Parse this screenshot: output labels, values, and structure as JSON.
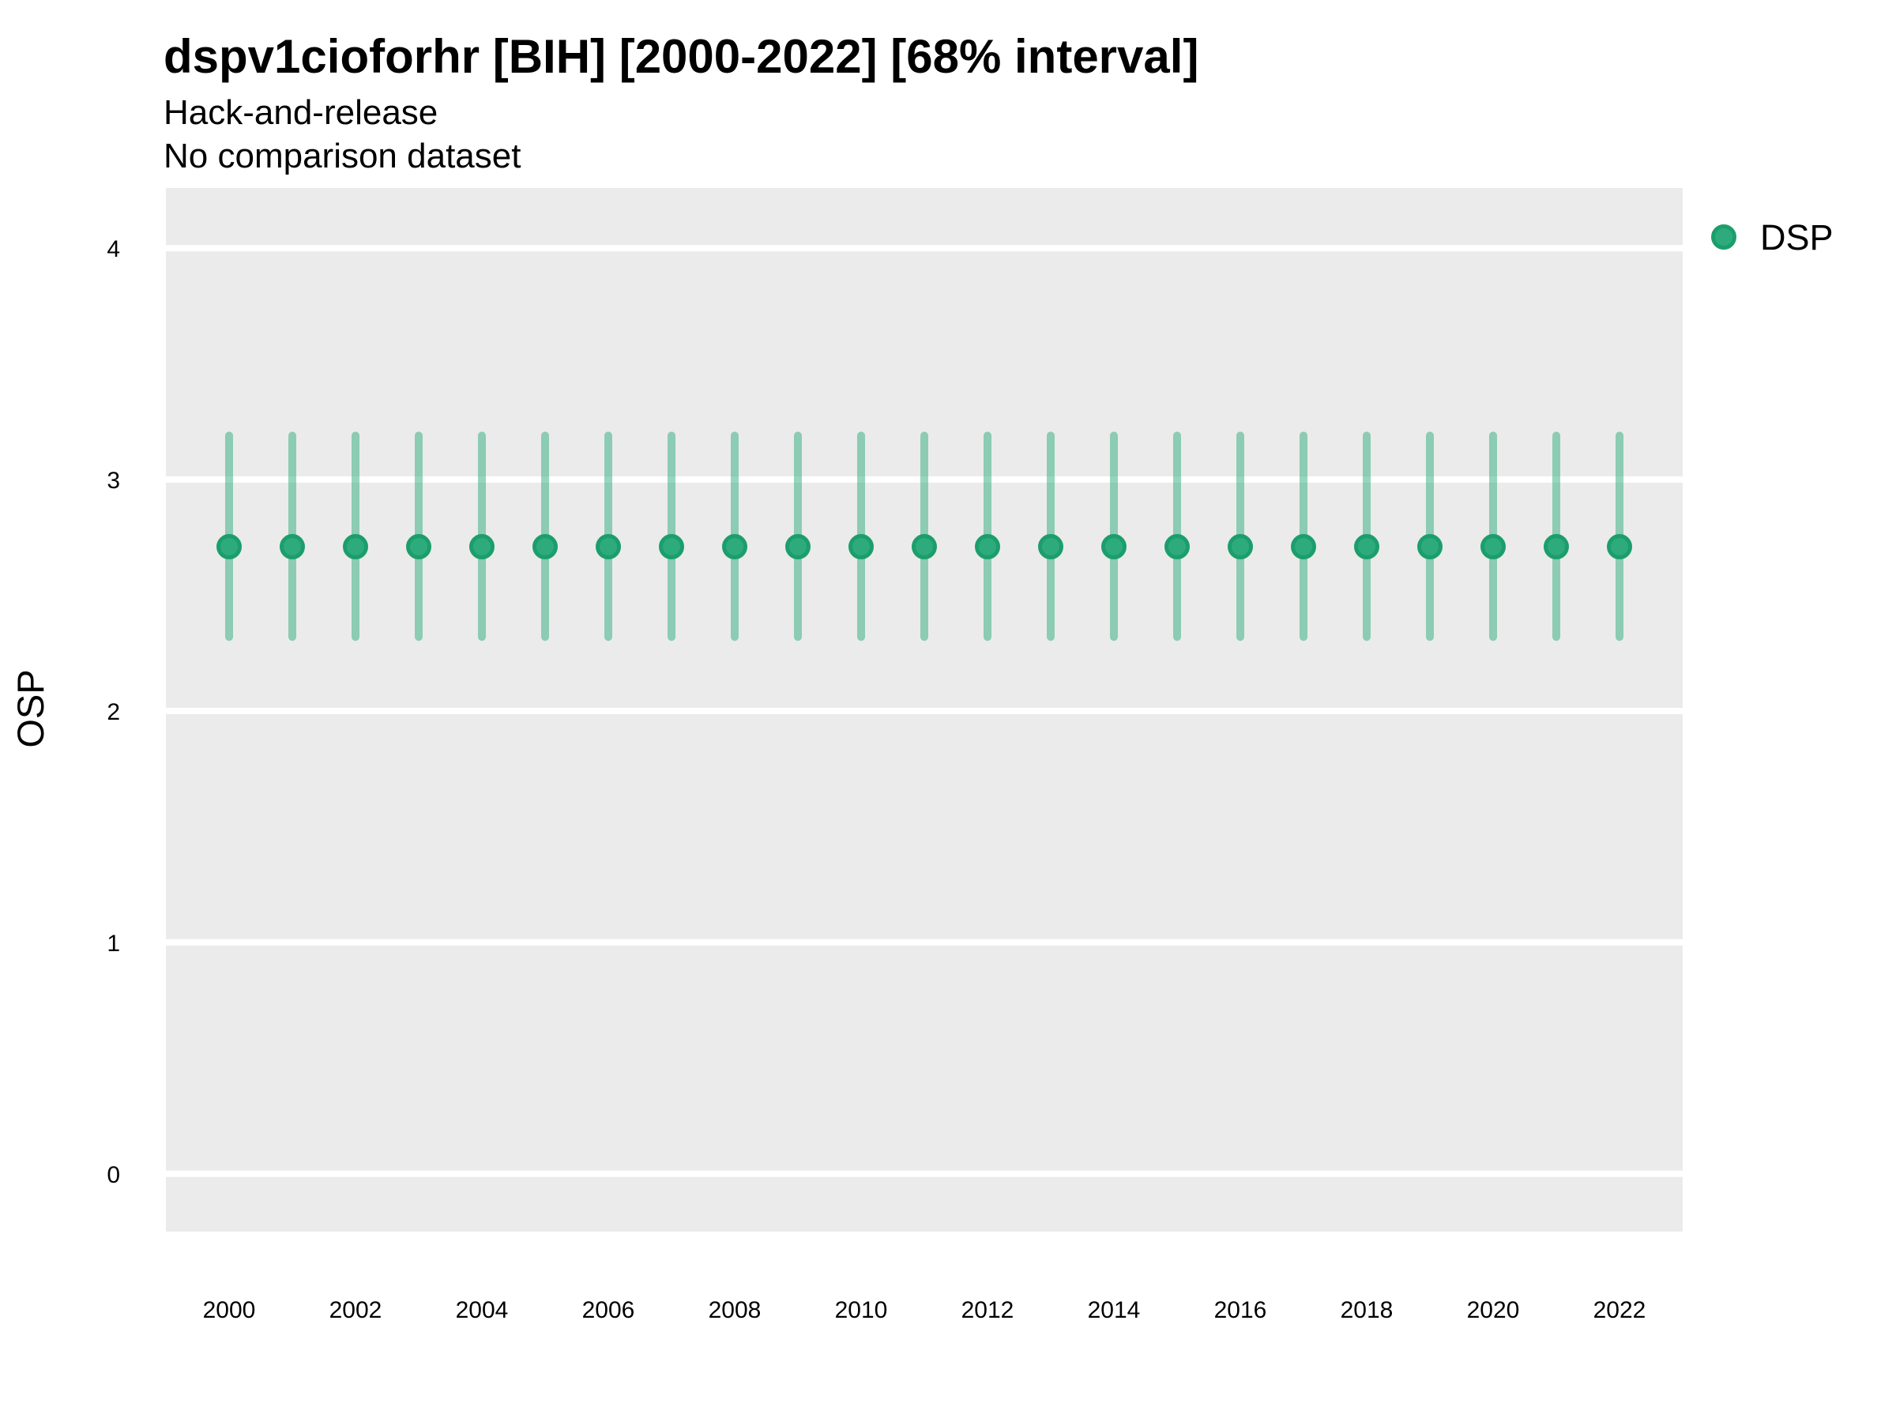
{
  "header": {
    "title": "dspv1cioforhr [BIH] [2000-2022] [68% interval]",
    "subtitle_line1": "Hack-and-release",
    "subtitle_line2": "No comparison dataset"
  },
  "legend": {
    "items": [
      {
        "label": "DSP",
        "marker_color": "#2EAB7D",
        "marker_border": "#1C9E6C"
      }
    ]
  },
  "chart_data": {
    "type": "scatter",
    "title": "dspv1cioforhr [BIH] [2000-2022] [68% interval]",
    "subtitle": [
      "Hack-and-release",
      "No comparison dataset"
    ],
    "xlabel": "",
    "ylabel": "OSP",
    "interval_label": "68% interval",
    "series": [
      {
        "name": "DSP",
        "x": [
          2000,
          2001,
          2002,
          2003,
          2004,
          2005,
          2006,
          2007,
          2008,
          2009,
          2010,
          2011,
          2012,
          2013,
          2014,
          2015,
          2016,
          2017,
          2018,
          2019,
          2020,
          2021,
          2022
        ],
        "estimate": [
          2.71,
          2.71,
          2.71,
          2.71,
          2.71,
          2.71,
          2.71,
          2.71,
          2.71,
          2.71,
          2.71,
          2.71,
          2.71,
          2.71,
          2.71,
          2.71,
          2.71,
          2.71,
          2.71,
          2.71,
          2.71,
          2.71,
          2.71
        ],
        "lower": [
          2.32,
          2.32,
          2.32,
          2.32,
          2.32,
          2.32,
          2.32,
          2.32,
          2.32,
          2.32,
          2.32,
          2.32,
          2.32,
          2.32,
          2.32,
          2.32,
          2.32,
          2.32,
          2.32,
          2.32,
          2.32,
          2.32,
          2.32
        ],
        "upper": [
          3.19,
          3.19,
          3.19,
          3.19,
          3.19,
          3.19,
          3.19,
          3.19,
          3.19,
          3.19,
          3.19,
          3.19,
          3.19,
          3.19,
          3.19,
          3.19,
          3.19,
          3.19,
          3.19,
          3.19,
          3.19,
          3.19,
          3.19
        ]
      }
    ],
    "yticks": [
      0,
      1,
      2,
      3,
      4
    ],
    "xticks": [
      2000,
      2002,
      2004,
      2006,
      2008,
      2010,
      2012,
      2014,
      2016,
      2018,
      2020,
      2022
    ],
    "x_range": [
      1999,
      2023
    ],
    "y_range": [
      -0.25,
      4.26
    ],
    "grid": "horizontal-only",
    "legend_position": "right-top",
    "colors": {
      "point": "#2EAB7D",
      "point_border": "#1C9E6C",
      "interval": "#2EAB7D",
      "interval_opacity": 0.5,
      "panel_bg": "#EBEBEB",
      "gridline": "#FFFFFF",
      "text": "#000000"
    }
  }
}
